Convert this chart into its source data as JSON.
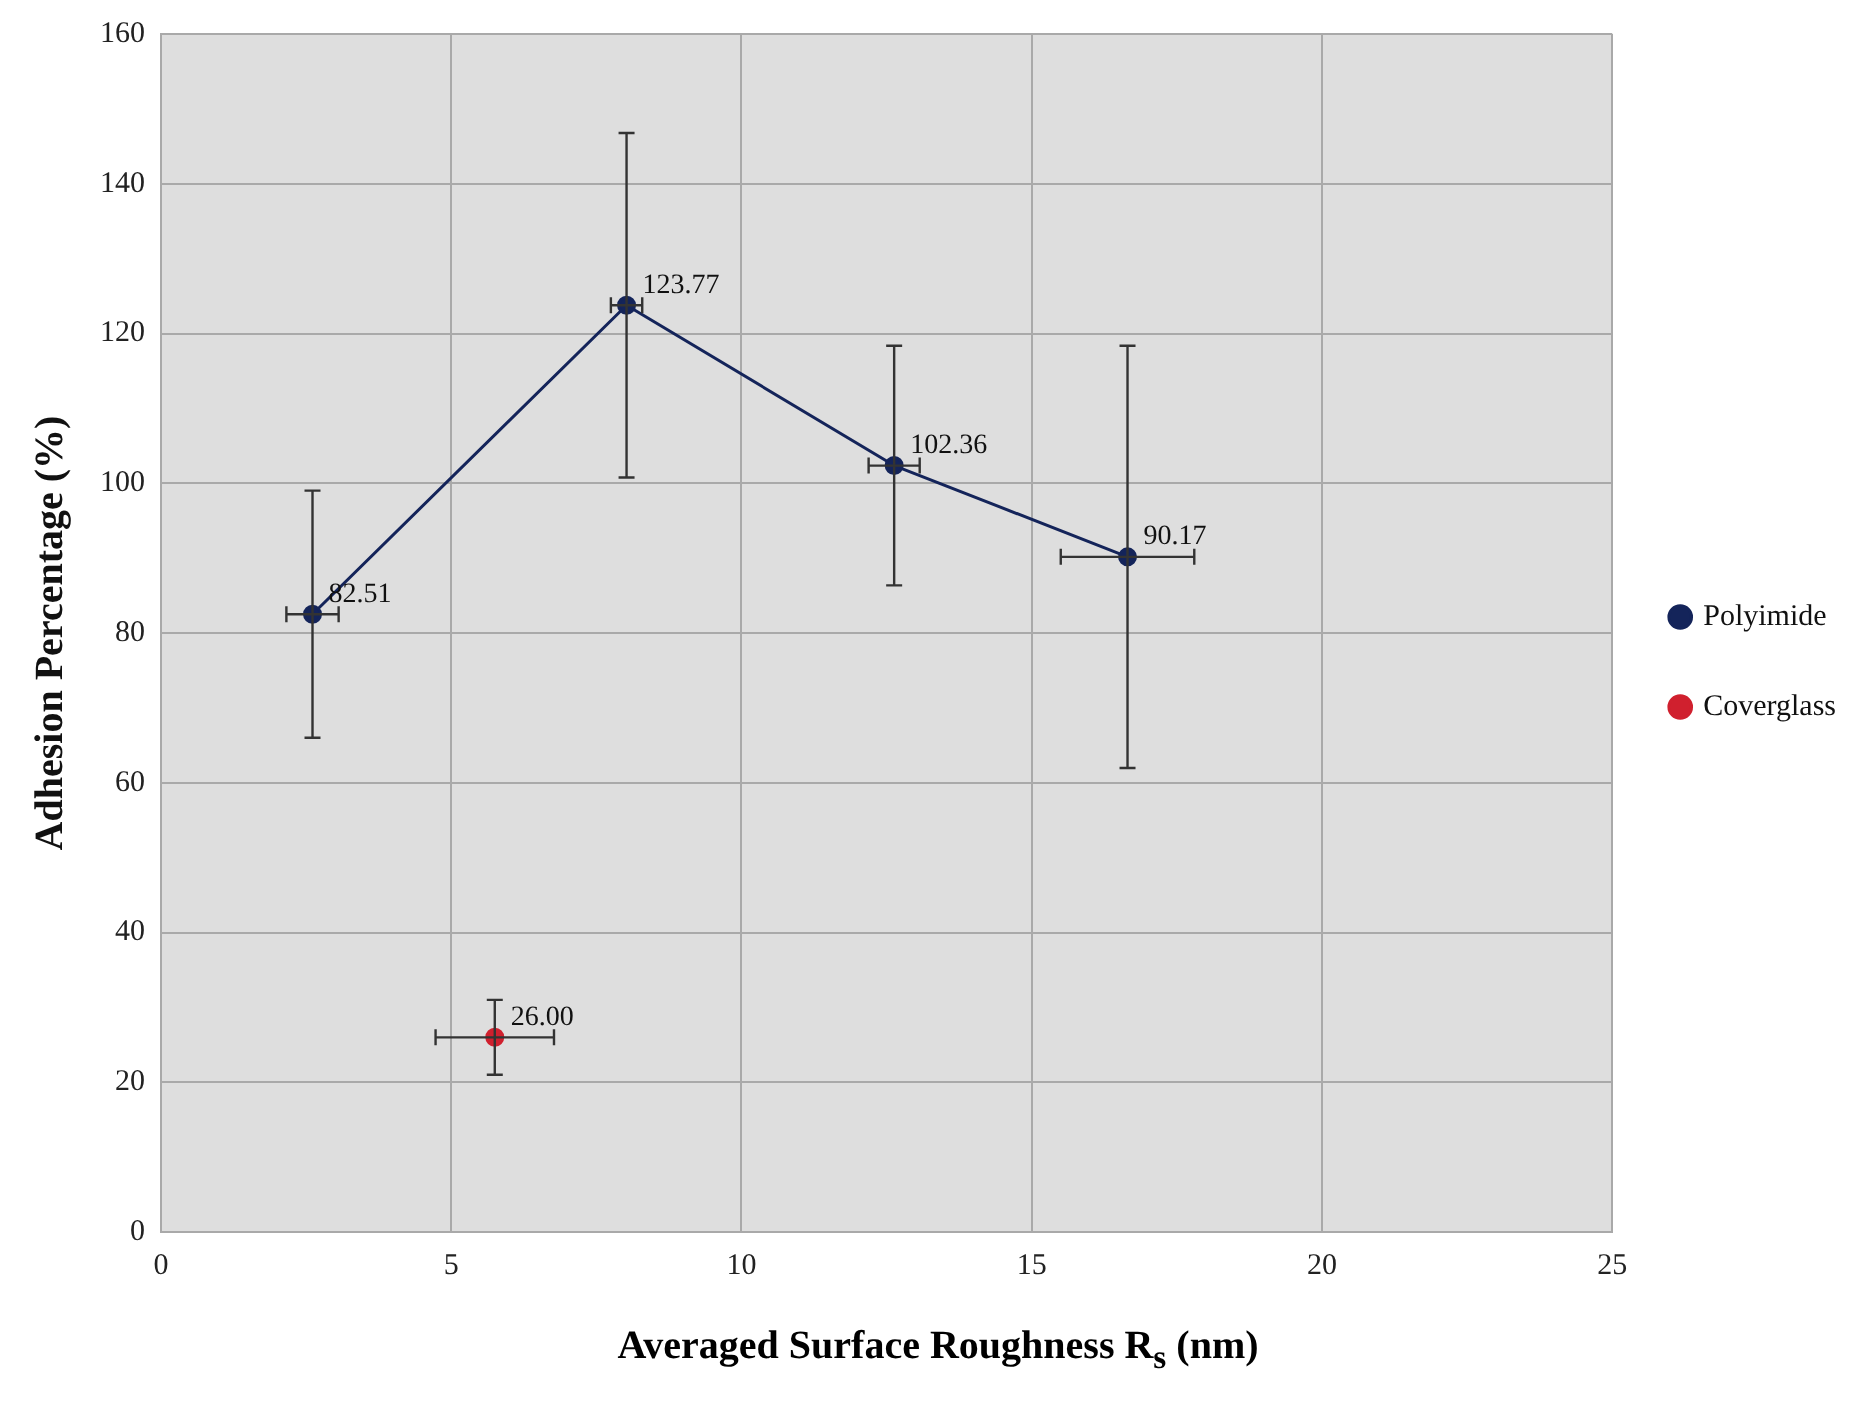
{
  "chart_data": {
    "type": "line",
    "xlabel": "Averaged Surface Roughness R$_{s}$ (nm)",
    "ylabel": "Adhesion Percentage (%)",
    "xlim": [
      0,
      25
    ],
    "xticks": [
      0,
      5,
      10,
      15,
      20,
      25
    ],
    "ylim": [
      0,
      160
    ],
    "yticks": [
      0,
      20,
      40,
      60,
      80,
      100,
      120,
      140,
      160
    ],
    "grid": true,
    "legend": "right",
    "marker": "circle",
    "series": [
      {
        "name": "Polyimide",
        "color": "#14245a",
        "x": [
          2.61,
          8.02,
          12.63,
          16.65
        ],
        "values": [
          82.51,
          123.77,
          102.36,
          90.17
        ],
        "value_labels": [
          "82.51",
          "123.77",
          "102.36",
          "90.17"
        ],
        "errors": [
          16.5,
          23,
          16,
          28.2
        ],
        "xerrors": [
          0.45,
          0.27,
          0.44,
          1.15
        ]
      },
      {
        "name": "Coverglass",
        "color": "#d0202e",
        "x": [
          5.75
        ],
        "values": [
          26.0
        ],
        "value_labels": [
          "26.00"
        ],
        "errors": [
          5
        ],
        "xerrors": [
          1.02
        ]
      }
    ]
  }
}
